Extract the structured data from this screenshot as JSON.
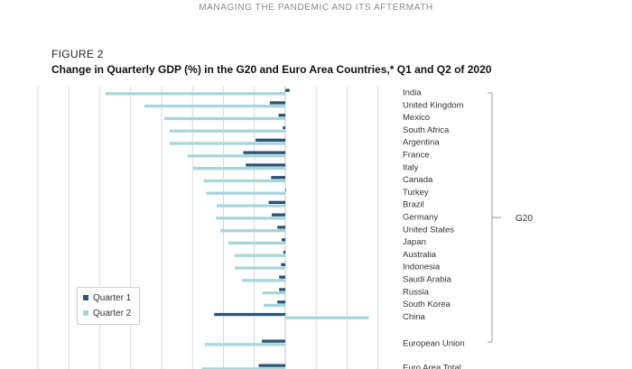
{
  "page": {
    "running_head": "MANAGING THE PANDEMIC AND ITS AFTERMATH",
    "figure_label": "FIGURE 2",
    "figure_title": "Change in Quarterly GDP (%) in the G20 and Euro Area Countries,* Q1 and Q2 of 2020"
  },
  "colors": {
    "quarter1": "#2e5474",
    "quarter2": "#a8d5d8",
    "grid": "#d9d9d9",
    "bracket": "#9a9a9a"
  },
  "chart_data": {
    "type": "bar",
    "orientation": "horizontal",
    "title": "Change in Quarterly GDP (%) in the G20 and Euro Area Countries,* Q1 and Q2 of 2020",
    "xlabel": "",
    "ylabel": "",
    "xlim": [
      -30,
      12
    ],
    "grid": true,
    "legend_position": "bottom-left",
    "categories": [
      "India",
      "United Kingdom",
      "Mexico",
      "South Africa",
      "Argentina",
      "France",
      "Italy",
      "Canada",
      "Turkey",
      "Brazil",
      "Germany",
      "United States",
      "Japan",
      "Australia",
      "Indonesia",
      "Saudi Arabia",
      "Russia",
      "South Korea",
      "China",
      "European Union",
      "Euro Area Total"
    ],
    "series": [
      {
        "name": "Quarter 1",
        "values": [
          0.7,
          -2.5,
          -1.1,
          -0.4,
          -4.8,
          -6.8,
          -6.4,
          -2.3,
          0.1,
          -2.7,
          -2.2,
          -1.3,
          -0.6,
          -0.3,
          -0.7,
          -1.0,
          -1.0,
          -1.3,
          -11.5,
          -3.8,
          -4.3
        ]
      },
      {
        "name": "Quarter 2",
        "values": [
          -29.1,
          -22.8,
          -19.6,
          -18.7,
          -18.7,
          -15.8,
          -14.9,
          -13.2,
          -12.8,
          -11.1,
          -11.2,
          -10.5,
          -9.2,
          -8.2,
          -8.2,
          -7.0,
          -3.7,
          -3.5,
          13.5,
          -13.0,
          -13.5
        ]
      }
    ],
    "groups": [
      {
        "label": "G20",
        "from": "India",
        "to": "European Union"
      }
    ]
  }
}
